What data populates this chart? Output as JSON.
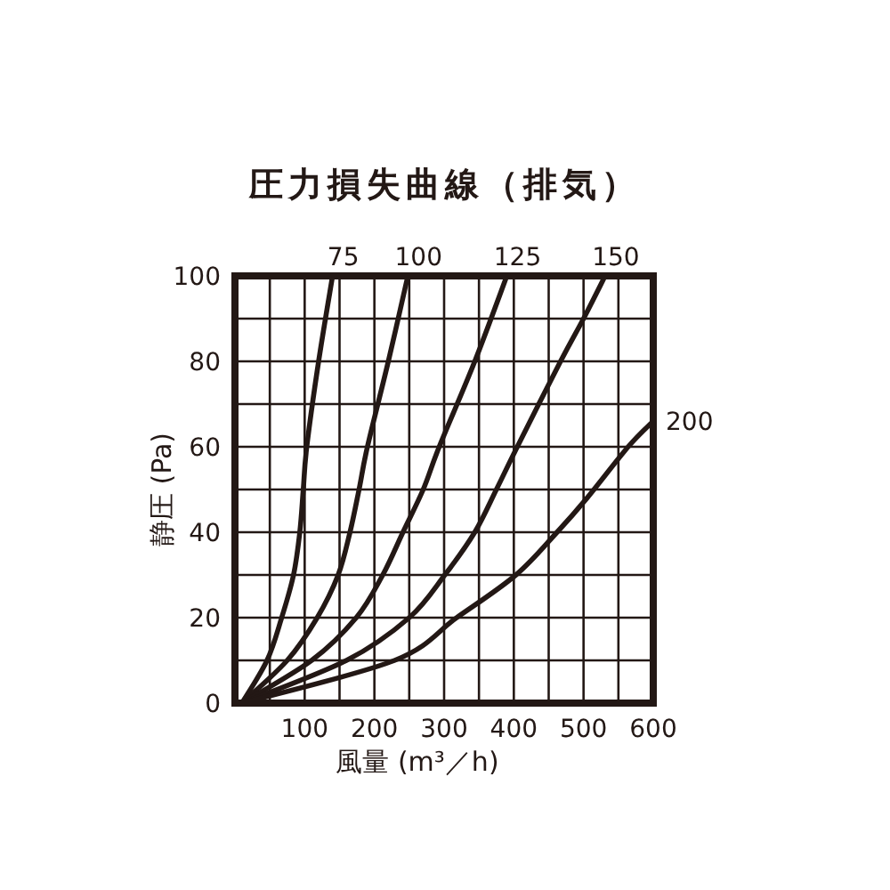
{
  "chart_data": {
    "type": "line",
    "title": "圧力損失曲線（排気）",
    "xlabel": "風量 (m³／h)",
    "ylabel": "静圧 (Pa)",
    "xlim": [
      0,
      600
    ],
    "ylim": [
      0,
      100
    ],
    "xticks": [
      {
        "value": 0,
        "label": null
      },
      {
        "value": 50,
        "label": null
      },
      100,
      {
        "value": 150,
        "label": null
      },
      200,
      {
        "value": 250,
        "label": null
      },
      300,
      {
        "value": 350,
        "label": null
      },
      400,
      {
        "value": 450,
        "label": null
      },
      500,
      {
        "value": 550,
        "label": null
      },
      600
    ],
    "yticks": [
      0,
      {
        "value": 10,
        "label": null
      },
      20,
      {
        "value": 30,
        "label": null
      },
      40,
      {
        "value": 50,
        "label": null
      },
      60,
      {
        "value": 70,
        "label": null
      },
      80,
      {
        "value": 90,
        "label": null
      },
      100
    ],
    "grid": true,
    "marker": "none",
    "line_style": "solid",
    "series": [
      {
        "name": "75",
        "color": "#231815",
        "x": [
          10,
          46,
          67,
          84,
          93,
          98,
          103,
          120,
          140
        ],
        "values": [
          0,
          10,
          20,
          30,
          40,
          50,
          60,
          80,
          100
        ]
      },
      {
        "name": "100",
        "color": "#231815",
        "x": [
          10,
          75,
          118,
          148,
          165,
          178,
          190,
          220,
          248
        ],
        "values": [
          0,
          10,
          20,
          30,
          40,
          50,
          60,
          80,
          100
        ]
      },
      {
        "name": "125",
        "color": "#231815",
        "x": [
          10,
          110,
          174,
          212,
          241,
          270,
          293,
          344,
          390
        ],
        "values": [
          0,
          10,
          20,
          30,
          40,
          50,
          60,
          80,
          100
        ]
      },
      {
        "name": "150",
        "color": "#231815",
        "x": [
          10,
          160,
          250,
          301,
          344,
          375,
          405,
          467,
          500,
          531
        ],
        "values": [
          0,
          10,
          20,
          30,
          40,
          50,
          60,
          80,
          90,
          100
        ]
      },
      {
        "name": "200",
        "color": "#231815",
        "x": [
          10,
          229,
          318,
          403,
          462,
          505,
          564,
          600
        ],
        "values": [
          0,
          10,
          20,
          30,
          40,
          48,
          60,
          66
        ]
      }
    ]
  }
}
